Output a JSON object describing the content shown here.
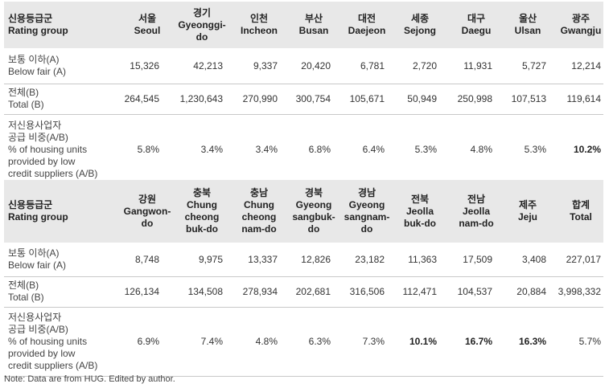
{
  "tables": [
    {
      "header_label": "신용등급군\nRating group",
      "regions": [
        "서울\nSeoul",
        "경기\nGyeonggi-\ndo",
        "인천\nIncheon",
        "부산\nBusan",
        "대전\nDaejeon",
        "세종\nSejong",
        "대구\nDaegu",
        "울산\nUlsan",
        "광주\nGwangju"
      ],
      "rows": [
        {
          "label": "보통 이하(A)\nBelow fair (A)",
          "values": [
            "15,326",
            "42,213",
            "9,337",
            "20,420",
            "6,781",
            "2,720",
            "11,931",
            "5,727",
            "12,214"
          ]
        },
        {
          "label": "전체(B)\nTotal (B)",
          "values": [
            "264,545",
            "1,230,643",
            "270,990",
            "300,754",
            "105,671",
            "50,949",
            "250,998",
            "107,513",
            "119,614"
          ]
        },
        {
          "label": "저신용사업자\n공급 비중(A/B)\n% of housing units\nprovided by low\ncredit suppliers (A/B)",
          "values": [
            "5.8%",
            "3.4%",
            "3.4%",
            "6.8%",
            "6.4%",
            "5.3%",
            "4.8%",
            "5.3%",
            "10.2%"
          ],
          "bold": [
            false,
            false,
            false,
            false,
            false,
            false,
            false,
            false,
            true
          ]
        }
      ]
    },
    {
      "header_label": "신용등급군\nRating group",
      "regions": [
        "강원\nGangwon-\ndo",
        "충북\nChung\ncheong\nbuk-do",
        "충남\nChung\ncheong\nnam-do",
        "경북\nGyeong\nsangbuk-\ndo",
        "경남\nGyeong\nsangnam-\ndo",
        "전북\nJeolla\nbuk-do",
        "전남\nJeolla\nnam-do",
        "제주\nJeju",
        "합계\nTotal"
      ],
      "rows": [
        {
          "label": "보통 이하(A)\nBelow fair (A)",
          "values": [
            "8,748",
            "9,975",
            "13,337",
            "12,826",
            "23,182",
            "11,363",
            "17,509",
            "3,408",
            "227,017"
          ]
        },
        {
          "label": "전체(B)\nTotal (B)",
          "values": [
            "126,134",
            "134,508",
            "278,934",
            "202,681",
            "316,506",
            "112,471",
            "104,537",
            "20,884",
            "3,998,332"
          ]
        },
        {
          "label": "저신용사업자\n공급 비중(A/B)\n% of housing units\nprovided by low\ncredit suppliers (A/B)",
          "values": [
            "6.9%",
            "7.4%",
            "4.8%",
            "6.3%",
            "7.3%",
            "10.1%",
            "16.7%",
            "16.3%",
            "5.7%"
          ],
          "bold": [
            false,
            false,
            false,
            false,
            false,
            true,
            true,
            true,
            false
          ]
        }
      ]
    }
  ],
  "note": "Note: Data are from HUG. Edited by author."
}
